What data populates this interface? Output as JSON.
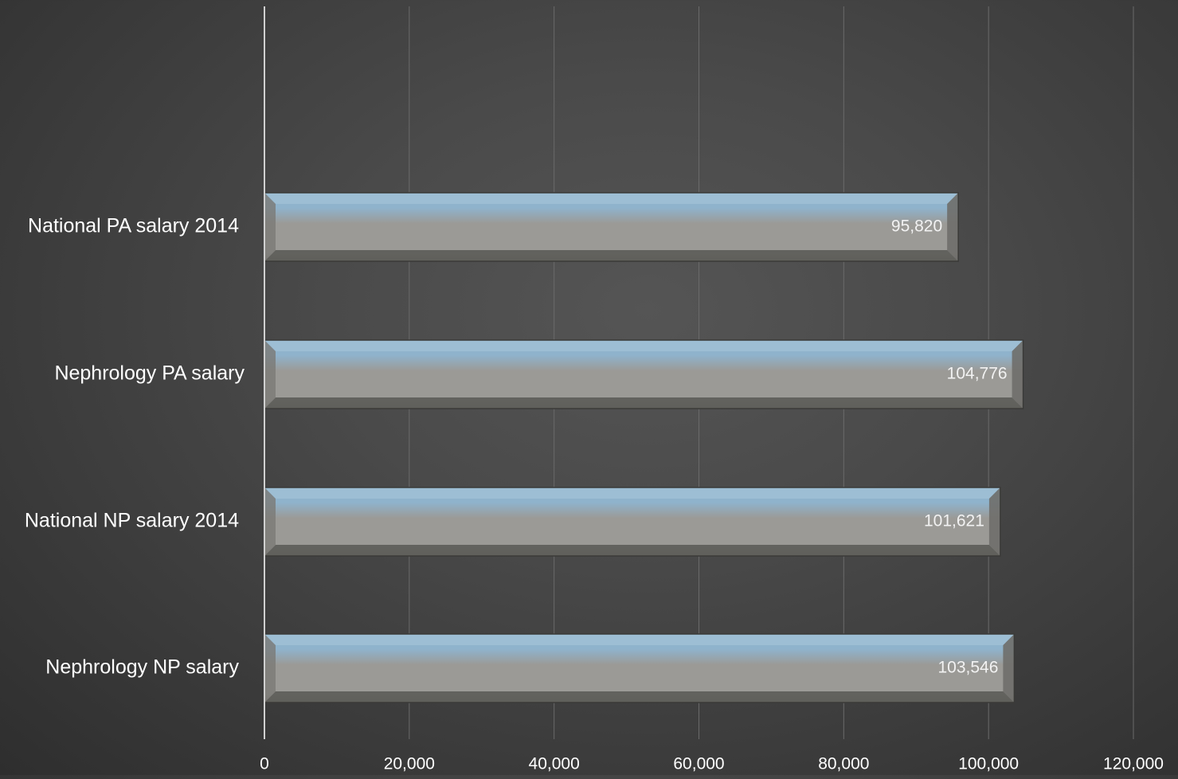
{
  "chart_data": {
    "type": "bar",
    "orientation": "horizontal",
    "title": "",
    "xlabel": "",
    "ylabel": "",
    "categories": [
      "National PA salary 2014",
      "Nephrology PA salary",
      "National NP salary 2014",
      "Nephrology NP salary"
    ],
    "values": [
      95820,
      104776,
      101621,
      103546
    ],
    "value_labels": [
      "95,820",
      "104,776",
      "101,621",
      "103,546"
    ],
    "xlim": [
      0,
      120000
    ],
    "ticks": [
      0,
      20000,
      40000,
      60000,
      80000,
      100000,
      120000
    ],
    "tick_labels": [
      "0",
      "20,000",
      "40,000",
      "60,000",
      "80,000",
      "100,000",
      "120,000"
    ],
    "grid": true,
    "legend": "none",
    "colors": {
      "bar_top": "#8fb3cc",
      "bar_face": "#9b9a96",
      "bar_edge": "#5c5c58",
      "background": "#454545",
      "text": "#ffffff",
      "gridline": "#6a6a6a",
      "axis": "#d0d0d0"
    }
  }
}
